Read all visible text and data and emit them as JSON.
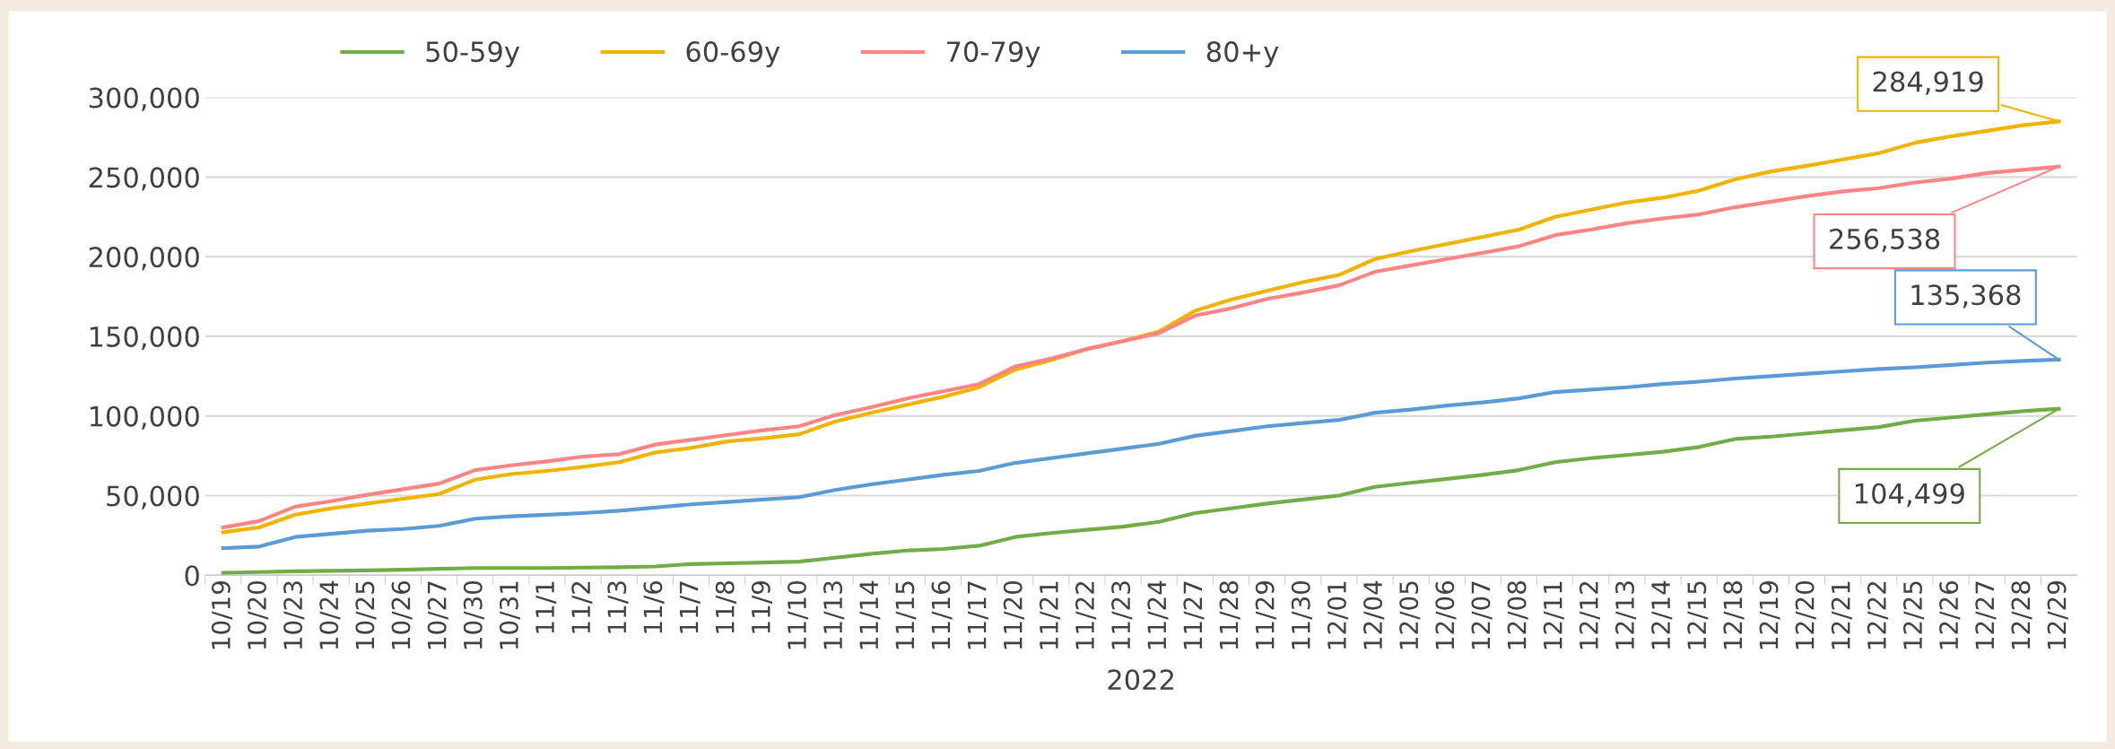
{
  "chart_data": {
    "type": "line",
    "xlabel": "2022",
    "categories": [
      "10/19",
      "10/20",
      "10/23",
      "10/24",
      "10/25",
      "10/26",
      "10/27",
      "10/30",
      "10/31",
      "11/1",
      "11/2",
      "11/3",
      "11/6",
      "11/7",
      "11/8",
      "11/9",
      "11/10",
      "11/13",
      "11/14",
      "11/15",
      "11/16",
      "11/17",
      "11/20",
      "11/21",
      "11/22",
      "11/23",
      "11/24",
      "11/27",
      "11/28",
      "11/29",
      "11/30",
      "12/01",
      "12/04",
      "12/05",
      "12/06",
      "12/07",
      "12/08",
      "12/11",
      "12/12",
      "12/13",
      "12/14",
      "12/15",
      "12/18",
      "12/19",
      "12/20",
      "12/21",
      "12/22",
      "12/25",
      "12/26",
      "12/27",
      "12/28",
      "12/29"
    ],
    "series": [
      {
        "name": "50-59y",
        "color": "#70ad47",
        "values": [
          1500,
          2000,
          2500,
          2800,
          3000,
          3500,
          4000,
          4500,
          4500,
          4500,
          4800,
          5000,
          5500,
          7000,
          7500,
          8000,
          8500,
          11000,
          13500,
          15500,
          16500,
          18500,
          24000,
          26500,
          28500,
          30500,
          33500,
          39000,
          42000,
          45000,
          47500,
          50000,
          55500,
          58000,
          60500,
          63000,
          66000,
          71000,
          73500,
          75500,
          77500,
          80500,
          85500,
          87000,
          89000,
          91000,
          93000,
          97000,
          99000,
          101000,
          103000,
          104499
        ],
        "value_labels": [
          null,
          null,
          null,
          null,
          null,
          null,
          null,
          null,
          null,
          null,
          null,
          null,
          null,
          null,
          null,
          null,
          null,
          null,
          null,
          null,
          null,
          null,
          null,
          null,
          null,
          null,
          null,
          null,
          null,
          null,
          null,
          null,
          null,
          null,
          null,
          null,
          null,
          null,
          null,
          null,
          null,
          null,
          null,
          null,
          null,
          null,
          null,
          null,
          null,
          null,
          null,
          "104,499"
        ]
      },
      {
        "name": "60-69y",
        "color": "#f0b400",
        "values": [
          27000,
          30000,
          38000,
          42000,
          45000,
          48000,
          51000,
          60000,
          63500,
          65500,
          68000,
          71000,
          77000,
          80000,
          84000,
          86000,
          88500,
          96500,
          102000,
          107000,
          112000,
          118000,
          129000,
          135000,
          142000,
          147000,
          153000,
          166000,
          173000,
          178500,
          184000,
          188500,
          198500,
          203500,
          208000,
          212500,
          217000,
          225000,
          229500,
          234000,
          237000,
          241500,
          248500,
          253500,
          257000,
          261000,
          265000,
          271500,
          275500,
          279000,
          282500,
          284919
        ],
        "value_labels": [
          null,
          null,
          null,
          null,
          null,
          null,
          null,
          null,
          null,
          null,
          null,
          null,
          null,
          null,
          null,
          null,
          null,
          null,
          null,
          null,
          null,
          null,
          null,
          null,
          null,
          null,
          null,
          null,
          null,
          null,
          null,
          null,
          null,
          null,
          null,
          null,
          null,
          null,
          null,
          null,
          null,
          null,
          null,
          null,
          null,
          null,
          null,
          null,
          null,
          null,
          null,
          "284,919"
        ]
      },
      {
        "name": "70-79y",
        "color": "#ff8585",
        "values": [
          30000,
          34000,
          43000,
          46500,
          50500,
          54000,
          57500,
          66000,
          69000,
          71500,
          74500,
          76000,
          82000,
          85000,
          88000,
          91000,
          93500,
          100500,
          105500,
          111000,
          115500,
          120000,
          131000,
          136000,
          142000,
          147000,
          152000,
          163000,
          167500,
          173500,
          177500,
          182000,
          190500,
          194500,
          198500,
          202500,
          206500,
          213500,
          217000,
          221000,
          224000,
          226500,
          231000,
          234500,
          238000,
          241000,
          243000,
          246500,
          249000,
          252500,
          254500,
          256538
        ],
        "value_labels": [
          null,
          null,
          null,
          null,
          null,
          null,
          null,
          null,
          null,
          null,
          null,
          null,
          null,
          null,
          null,
          null,
          null,
          null,
          null,
          null,
          null,
          null,
          null,
          null,
          null,
          null,
          null,
          null,
          null,
          null,
          null,
          null,
          null,
          null,
          null,
          null,
          null,
          null,
          null,
          null,
          null,
          null,
          null,
          null,
          null,
          null,
          null,
          null,
          null,
          null,
          null,
          "256,538"
        ]
      },
      {
        "name": "80+y",
        "color": "#5b9bd5",
        "values": [
          17000,
          18000,
          24000,
          26000,
          28000,
          29000,
          31000,
          35500,
          37000,
          38000,
          39000,
          40500,
          42500,
          44500,
          46000,
          47500,
          49000,
          53500,
          57000,
          60000,
          63000,
          65500,
          70500,
          73500,
          76500,
          79500,
          82500,
          87500,
          90500,
          93500,
          95500,
          97500,
          102000,
          104000,
          106500,
          108500,
          111000,
          115000,
          116500,
          118000,
          120000,
          121500,
          123500,
          125000,
          126500,
          128000,
          129500,
          130500,
          132000,
          133500,
          134500,
          135368
        ],
        "value_labels": [
          null,
          null,
          null,
          null,
          null,
          null,
          null,
          null,
          null,
          null,
          null,
          null,
          null,
          null,
          null,
          null,
          null,
          null,
          null,
          null,
          null,
          null,
          null,
          null,
          null,
          null,
          null,
          null,
          null,
          null,
          null,
          null,
          null,
          null,
          null,
          null,
          null,
          null,
          null,
          null,
          null,
          null,
          null,
          null,
          null,
          null,
          null,
          null,
          null,
          null,
          null,
          "135,368"
        ]
      }
    ],
    "ylim": [
      0,
      300000
    ],
    "yticks": [
      {
        "value": 0,
        "label": "0"
      },
      {
        "value": 50000,
        "label": "50,000"
      },
      {
        "value": 100000,
        "label": "100,000"
      },
      {
        "value": 150000,
        "label": "150,000"
      },
      {
        "value": 200000,
        "label": "200,000"
      },
      {
        "value": 250000,
        "label": "250,000"
      },
      {
        "value": 300000,
        "label": "300,000"
      }
    ],
    "grid": "y",
    "legend": "top left",
    "marker": "none",
    "line_style": "solid"
  }
}
